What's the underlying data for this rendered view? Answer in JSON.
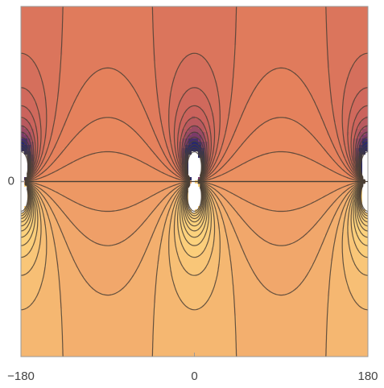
{
  "chart_data": {
    "type": "contour",
    "xlim": [
      -180,
      180
    ],
    "ylim": [
      -2,
      2
    ],
    "xticks": [
      {
        "value": -180,
        "label": "−180"
      },
      0,
      180
    ],
    "yticks": [
      0
    ]
  }
}
